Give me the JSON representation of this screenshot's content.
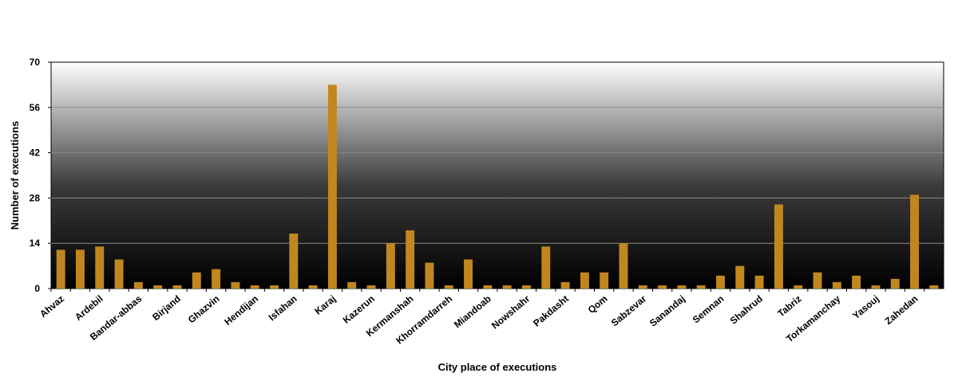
{
  "chart_data": {
    "type": "bar",
    "title": "",
    "xlabel": "City place of executions",
    "ylabel": "Number of executions",
    "ylim": [
      0,
      70
    ],
    "yticks": [
      0,
      14,
      28,
      42,
      56,
      70
    ],
    "grid": true,
    "legend": "none",
    "bar_color": "#c0871f",
    "categories": [
      "Ahvaz",
      "",
      "Ardebil",
      "",
      "Bandar-abbas",
      "",
      "Birjand",
      "",
      "Ghazvin",
      "",
      "Hendijan",
      "",
      "Isfahan",
      "",
      "Karaj",
      "",
      "Kazerun",
      "",
      "Kermanshah",
      "",
      "Khorramdarreh",
      "",
      "Miandoab",
      "",
      "Nowshahr",
      "",
      "Pakdasht",
      "",
      "Qom",
      "",
      "Sabzevar",
      "",
      "Sanandaj",
      "",
      "Semnan",
      "",
      "Shahrud",
      "",
      "Tabriz",
      "",
      "Torkamanchay",
      "",
      "Yasouj",
      "",
      "Zahedan",
      ""
    ],
    "values": [
      12,
      12,
      13,
      9,
      2,
      1,
      1,
      5,
      6,
      2,
      1,
      1,
      17,
      1,
      63,
      2,
      1,
      14,
      18,
      8,
      1,
      9,
      1,
      1,
      1,
      13,
      2,
      5,
      5,
      14,
      1,
      1,
      1,
      1,
      4,
      7,
      4,
      26,
      1,
      5,
      2,
      4,
      1,
      3,
      29,
      1
    ]
  }
}
